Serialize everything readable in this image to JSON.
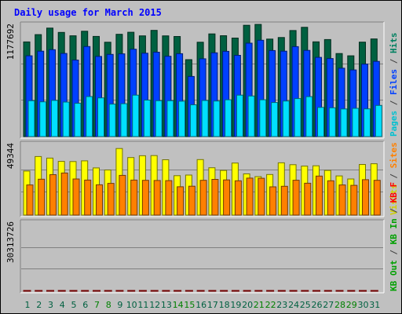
{
  "header": {
    "title": "Daily usage for March 2015"
  },
  "legend": {
    "panel1": [
      {
        "text": "Pages",
        "color": "#00c0d0"
      },
      {
        "text": " / ",
        "color": "#404040"
      },
      {
        "text": "Files",
        "color": "#0040ff"
      },
      {
        "text": " / ",
        "color": "#404040"
      },
      {
        "text": "Hits",
        "color": "#008060"
      }
    ],
    "panel2": [
      {
        "text": "Visits",
        "color": "#d0d000"
      },
      {
        "text": " / ",
        "color": "#404040"
      },
      {
        "text": "Sites",
        "color": "#ff8000"
      }
    ],
    "panel3": [
      {
        "text": "KB Out",
        "color": "#00a000"
      },
      {
        "text": " / ",
        "color": "#404040"
      },
      {
        "text": "KB In",
        "color": "#00a000"
      },
      {
        "text": " / ",
        "color": "#404040"
      },
      {
        "text": "KB F",
        "color": "#ff0000"
      }
    ]
  },
  "chart_data": {
    "type": "bar",
    "title": "Daily usage for March 2015",
    "categories": [
      "1",
      "2",
      "3",
      "4",
      "5",
      "6",
      "7",
      "8",
      "9",
      "10",
      "11",
      "12",
      "13",
      "14",
      "15",
      "16",
      "17",
      "18",
      "19",
      "20",
      "21",
      "22",
      "23",
      "24",
      "25",
      "26",
      "27",
      "28",
      "29",
      "30",
      "31"
    ],
    "weekend_days": [
      "7",
      "8",
      "14",
      "15",
      "21",
      "22",
      "28",
      "29"
    ],
    "colors": {
      "hits": "#006040",
      "files": "#0040ff",
      "pages": "#00e0ff",
      "visits": "#ffff00",
      "sites": "#ff8000",
      "kbytes": "#ff0000",
      "weekday_label": "#006040",
      "weekend_label": "#008000"
    },
    "panels": [
      {
        "name": "hits_files_pages",
        "max_label": "1177692",
        "max": 1177692,
        "series": [
          {
            "name": "Hits",
            "values": [
              1022000,
              1101000,
              1171000,
              1124000,
              1088000,
              1137000,
              1081000,
              1018000,
              1104000,
              1126000,
              1087000,
              1146000,
              1087000,
              1080000,
              830000,
              1018000,
              1108000,
              1089000,
              1063000,
              1201000,
              1211000,
              1052000,
              1069000,
              1145000,
              1179000,
              1023000,
              1047000,
              896000,
              872000,
              1019000,
              1054000
            ]
          },
          {
            "name": "Files",
            "values": [
              872000,
              922000,
              938000,
              897000,
              826000,
              972000,
              865000,
              887000,
              893000,
              943000,
              900000,
              911000,
              867000,
              895000,
              649000,
              840000,
              904000,
              920000,
              877000,
              1008000,
              1040000,
              929000,
              922000,
              971000,
              930000,
              855000,
              842000,
              738000,
              719000,
              782000,
              812000
            ]
          },
          {
            "name": "Pages",
            "values": [
              387000,
              375000,
              391000,
              373000,
              359000,
              432000,
              418000,
              351000,
              355000,
              447000,
              394000,
              387000,
              387000,
              382000,
              343000,
              390000,
              384000,
              397000,
              447000,
              438000,
              397000,
              368000,
              384000,
              410000,
              431000,
              315000,
              311000,
              298000,
              305000,
              299000,
              336000
            ]
          }
        ]
      },
      {
        "name": "visits_sites",
        "max_label": "49344",
        "max": 49344,
        "series": [
          {
            "name": "Visits",
            "values": [
              31800,
              42300,
              41200,
              38800,
              38700,
              39200,
              34100,
              32600,
              48100,
              41600,
              42900,
              43000,
              40000,
              28500,
              28900,
              40100,
              34200,
              32300,
              37600,
              29800,
              27800,
              29300,
              37800,
              36400,
              35400,
              35600,
              32300,
              28300,
              26100,
              36600,
              37100
            ]
          },
          {
            "name": "Sites",
            "values": [
              21800,
              25900,
              29200,
              30400,
              26100,
              25300,
              21900,
              22900,
              28700,
              25300,
              25100,
              25000,
              24900,
              20500,
              20900,
              25100,
              25800,
              25400,
              24800,
              26700,
              26600,
              20400,
              20800,
              25200,
              23000,
              28200,
              24800,
              21800,
              21500,
              25600,
              25100
            ]
          }
        ]
      },
      {
        "name": "kbytes",
        "max_label": "30313726",
        "max": 30313726,
        "series": [
          {
            "name": "KBytes",
            "values": [
              23800,
              24400,
              25500,
              23800,
              21800,
              23700,
              21700,
              21700,
              23900,
              30000,
              22800,
              22200,
              20700,
              18900,
              22300,
              22300,
              22600,
              23900,
              26900,
              25400,
              20700,
              19800,
              20500,
              24500,
              21000,
              20900,
              21000,
              18900,
              18400,
              20800,
              21100
            ]
          }
        ]
      }
    ],
    "grid": true
  }
}
